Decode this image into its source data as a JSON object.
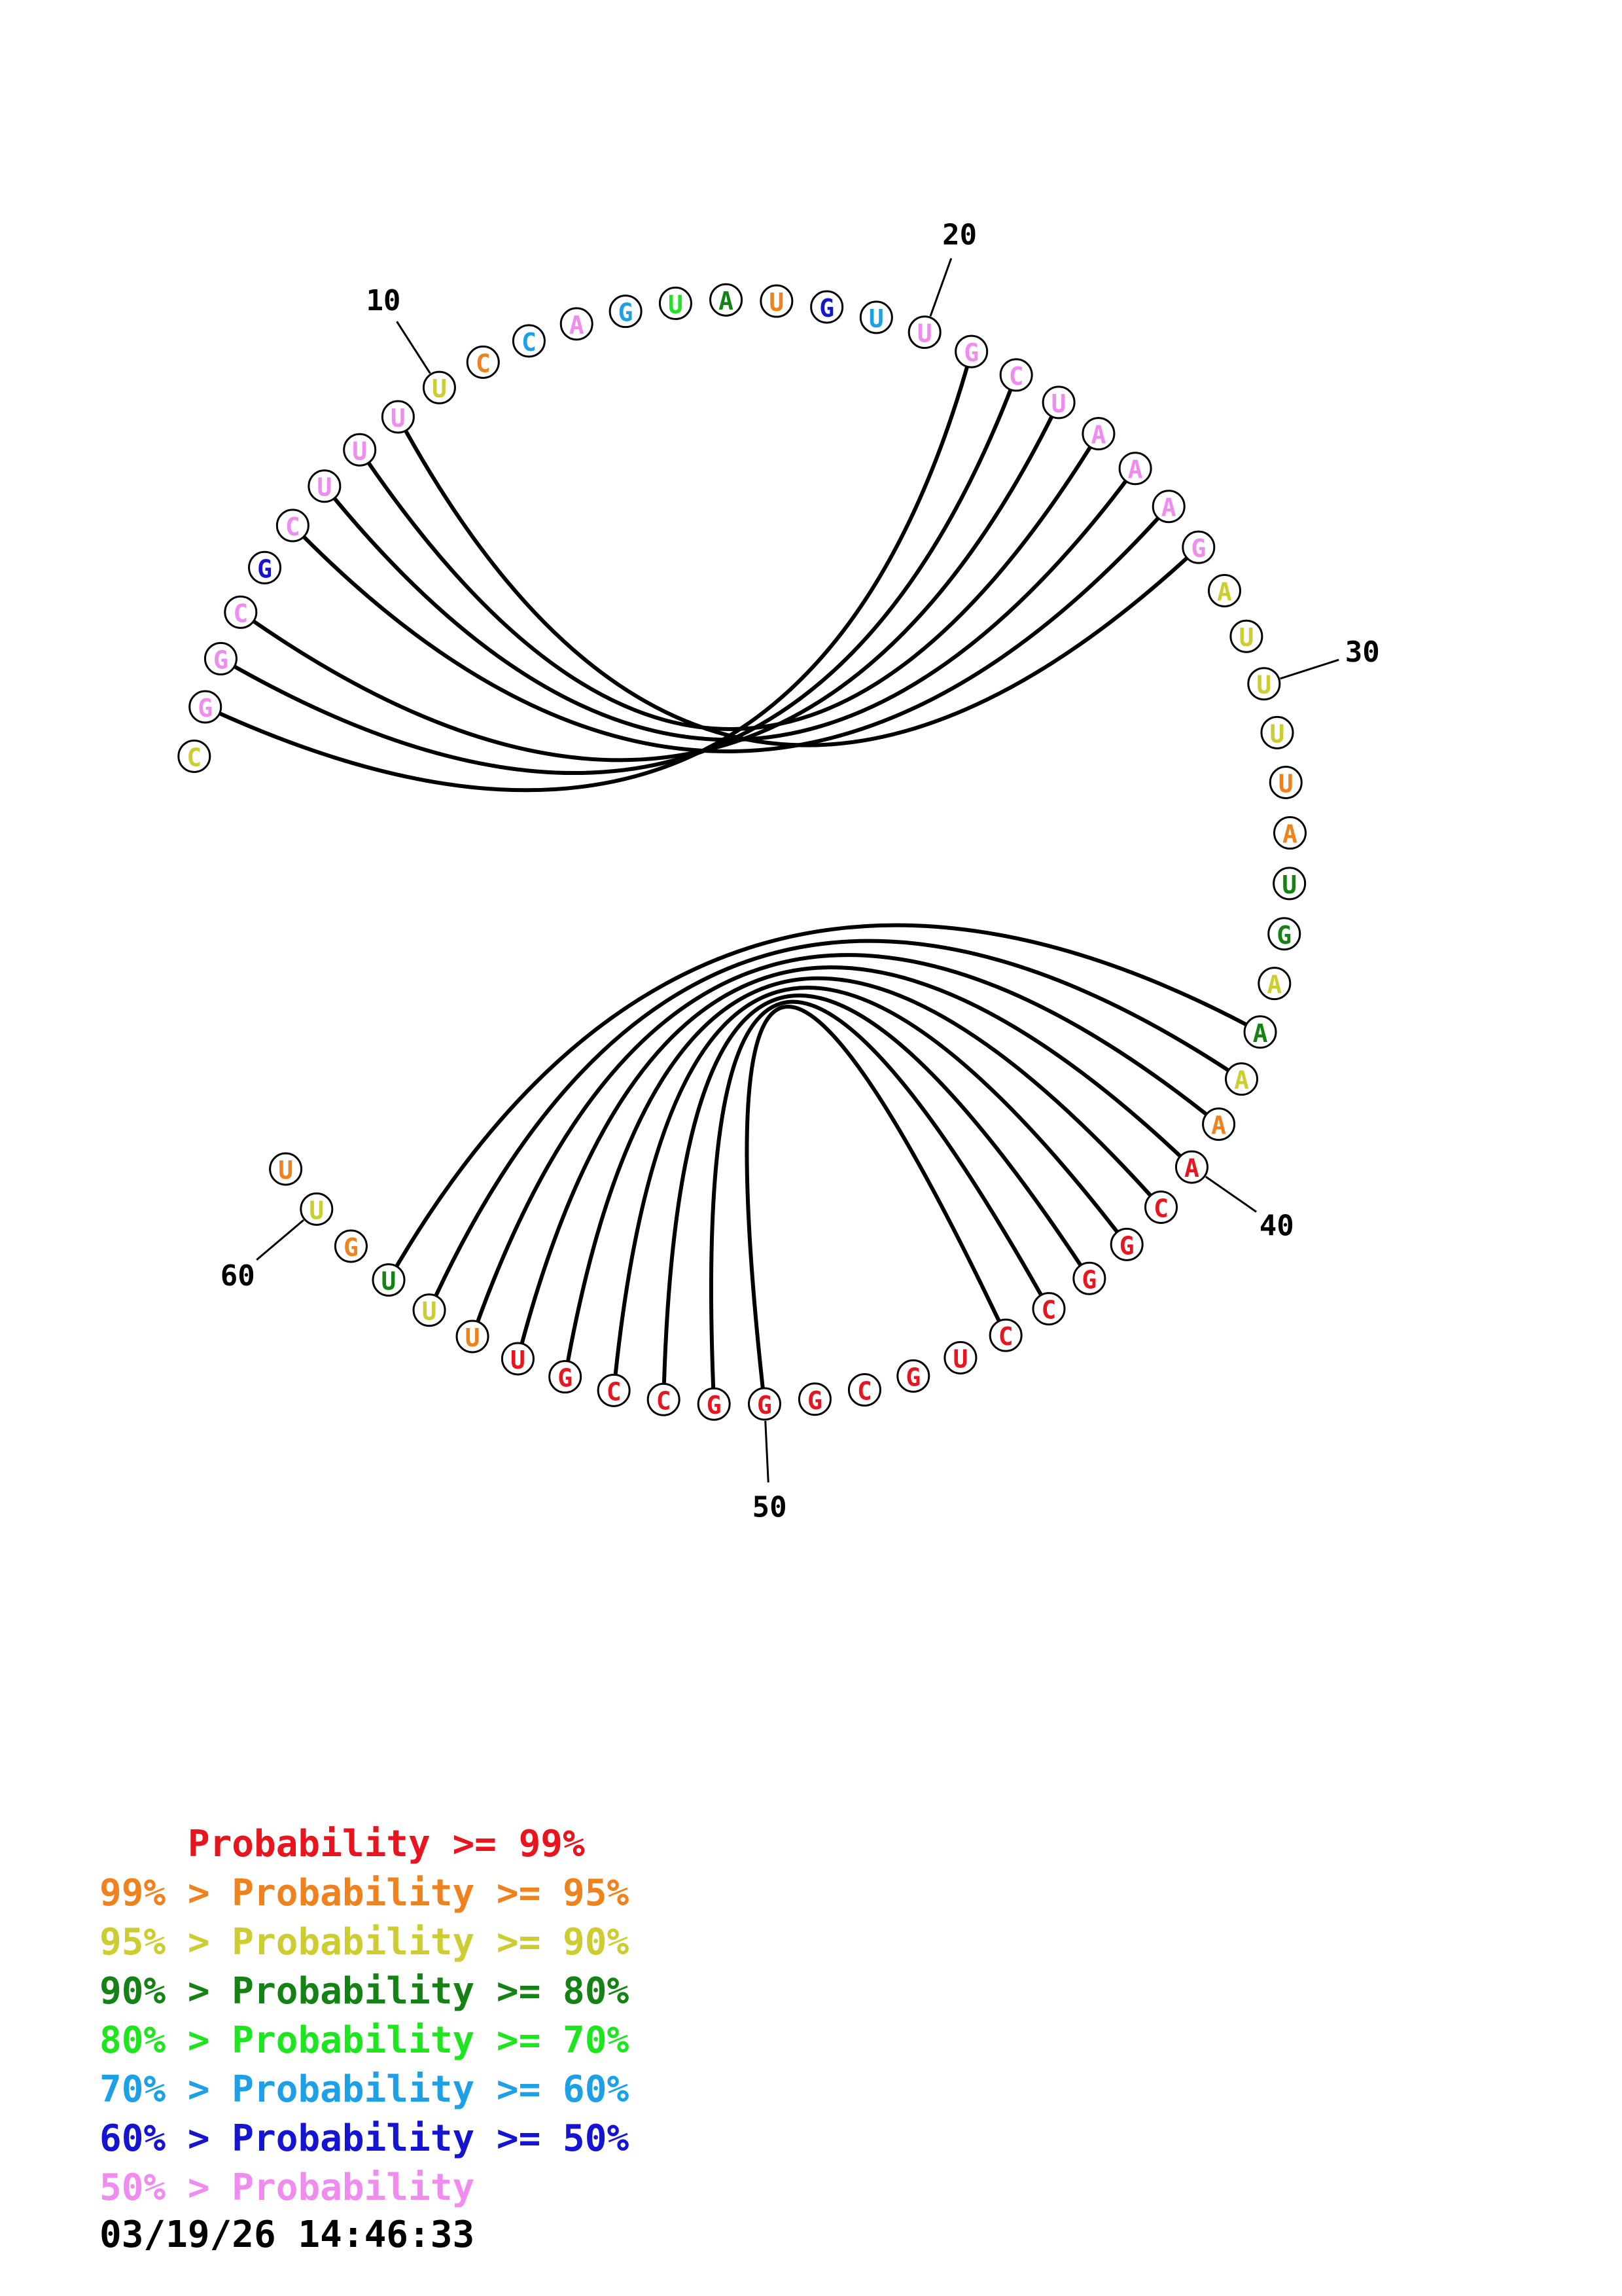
{
  "colors": {
    "p99": "#e8141e",
    "p95": "#f0821e",
    "p90": "#cdcd32",
    "p80": "#148214",
    "p70": "#1ee61e",
    "p60": "#1ea0e6",
    "p50": "#1414d2",
    "plt50": "#f08cf0"
  },
  "sequence": [
    {
      "n": 1,
      "base": "C",
      "color": "p90"
    },
    {
      "n": 2,
      "base": "G",
      "color": "plt50"
    },
    {
      "n": 3,
      "base": "G",
      "color": "plt50"
    },
    {
      "n": 4,
      "base": "C",
      "color": "plt50"
    },
    {
      "n": 5,
      "base": "G",
      "color": "p50"
    },
    {
      "n": 6,
      "base": "C",
      "color": "plt50"
    },
    {
      "n": 7,
      "base": "U",
      "color": "plt50"
    },
    {
      "n": 8,
      "base": "U",
      "color": "plt50"
    },
    {
      "n": 9,
      "base": "U",
      "color": "plt50"
    },
    {
      "n": 10,
      "base": "U",
      "color": "p90"
    },
    {
      "n": 11,
      "base": "C",
      "color": "p95"
    },
    {
      "n": 12,
      "base": "C",
      "color": "p60"
    },
    {
      "n": 13,
      "base": "A",
      "color": "plt50"
    },
    {
      "n": 14,
      "base": "G",
      "color": "p60"
    },
    {
      "n": 15,
      "base": "U",
      "color": "p70"
    },
    {
      "n": 16,
      "base": "A",
      "color": "p80"
    },
    {
      "n": 17,
      "base": "U",
      "color": "p95"
    },
    {
      "n": 18,
      "base": "G",
      "color": "p50"
    },
    {
      "n": 19,
      "base": "U",
      "color": "p60"
    },
    {
      "n": 20,
      "base": "U",
      "color": "plt50"
    },
    {
      "n": 21,
      "base": "G",
      "color": "plt50"
    },
    {
      "n": 22,
      "base": "C",
      "color": "plt50"
    },
    {
      "n": 23,
      "base": "U",
      "color": "plt50"
    },
    {
      "n": 24,
      "base": "A",
      "color": "plt50"
    },
    {
      "n": 25,
      "base": "A",
      "color": "plt50"
    },
    {
      "n": 26,
      "base": "A",
      "color": "plt50"
    },
    {
      "n": 27,
      "base": "G",
      "color": "plt50"
    },
    {
      "n": 28,
      "base": "A",
      "color": "p90"
    },
    {
      "n": 29,
      "base": "U",
      "color": "p90"
    },
    {
      "n": 30,
      "base": "U",
      "color": "p90"
    },
    {
      "n": 31,
      "base": "U",
      "color": "p90"
    },
    {
      "n": 32,
      "base": "U",
      "color": "p95"
    },
    {
      "n": 33,
      "base": "A",
      "color": "p95"
    },
    {
      "n": 34,
      "base": "U",
      "color": "p80"
    },
    {
      "n": 35,
      "base": "G",
      "color": "p80"
    },
    {
      "n": 36,
      "base": "A",
      "color": "p90"
    },
    {
      "n": 37,
      "base": "A",
      "color": "p80"
    },
    {
      "n": 38,
      "base": "A",
      "color": "p90"
    },
    {
      "n": 39,
      "base": "A",
      "color": "p95"
    },
    {
      "n": 40,
      "base": "A",
      "color": "p99"
    },
    {
      "n": 41,
      "base": "C",
      "color": "p99"
    },
    {
      "n": 42,
      "base": "G",
      "color": "p99"
    },
    {
      "n": 43,
      "base": "G",
      "color": "p99"
    },
    {
      "n": 44,
      "base": "C",
      "color": "p99"
    },
    {
      "n": 45,
      "base": "C",
      "color": "p99"
    },
    {
      "n": 46,
      "base": "U",
      "color": "p99"
    },
    {
      "n": 47,
      "base": "G",
      "color": "p99"
    },
    {
      "n": 48,
      "base": "C",
      "color": "p99"
    },
    {
      "n": 49,
      "base": "G",
      "color": "p99"
    },
    {
      "n": 50,
      "base": "G",
      "color": "p99"
    },
    {
      "n": 51,
      "base": "G",
      "color": "p99"
    },
    {
      "n": 52,
      "base": "C",
      "color": "p99"
    },
    {
      "n": 53,
      "base": "C",
      "color": "p99"
    },
    {
      "n": 54,
      "base": "G",
      "color": "p99"
    },
    {
      "n": 55,
      "base": "U",
      "color": "p99"
    },
    {
      "n": 56,
      "base": "U",
      "color": "p95"
    },
    {
      "n": 57,
      "base": "U",
      "color": "p90"
    },
    {
      "n": 58,
      "base": "U",
      "color": "p80"
    },
    {
      "n": 59,
      "base": "G",
      "color": "p95"
    },
    {
      "n": 60,
      "base": "U",
      "color": "p90"
    },
    {
      "n": 61,
      "base": "U",
      "color": "p95"
    }
  ],
  "pairs": [
    [
      2,
      21
    ],
    [
      3,
      22
    ],
    [
      4,
      23
    ],
    [
      6,
      26
    ],
    [
      7,
      25
    ],
    [
      8,
      24
    ],
    [
      9,
      27
    ],
    [
      37,
      58
    ],
    [
      38,
      57
    ],
    [
      39,
      56
    ],
    [
      40,
      55
    ],
    [
      41,
      54
    ],
    [
      42,
      53
    ],
    [
      43,
      52
    ],
    [
      44,
      51
    ],
    [
      45,
      50
    ]
  ],
  "position_labels": [
    {
      "n": 10,
      "text": "10"
    },
    {
      "n": 20,
      "text": "20"
    },
    {
      "n": 30,
      "text": "30"
    },
    {
      "n": 40,
      "text": "40"
    },
    {
      "n": 50,
      "text": "50"
    },
    {
      "n": 60,
      "text": "60"
    }
  ],
  "legend": [
    {
      "prefix": "    ",
      "text": "Probability >= 99%",
      "color": "p99"
    },
    {
      "prefix": "99% > ",
      "text": "Probability >= 95%",
      "color": "p95"
    },
    {
      "prefix": "95% > ",
      "text": "Probability >= 90%",
      "color": "p90"
    },
    {
      "prefix": "90% > ",
      "text": "Probability >= 80%",
      "color": "p80"
    },
    {
      "prefix": "80% > ",
      "text": "Probability >= 70%",
      "color": "p70"
    },
    {
      "prefix": "70% > ",
      "text": "Probability >= 60%",
      "color": "p60"
    },
    {
      "prefix": "60% > ",
      "text": "Probability >= 50%",
      "color": "p50"
    },
    {
      "prefix": "50% > ",
      "text": "Probability",
      "color": "plt50"
    }
  ],
  "timestamp": "03/19/26 14:46:33"
}
